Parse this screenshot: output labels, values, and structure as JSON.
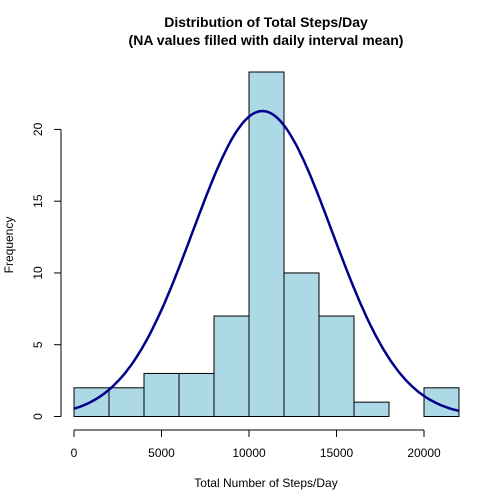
{
  "chart_data": {
    "type": "bar",
    "title": "Distribution of Total Steps/Day",
    "subtitle": "(NA values filled with daily interval mean)",
    "xlabel": "Total Number of Steps/Day",
    "ylabel": "Frequency",
    "bin_edges": [
      0,
      2000,
      4000,
      6000,
      8000,
      10000,
      12000,
      14000,
      16000,
      18000,
      20000,
      22000
    ],
    "values": [
      2,
      2,
      3,
      3,
      7,
      24,
      10,
      7,
      1,
      0,
      2
    ],
    "xlim": [
      0,
      22000
    ],
    "ylim": [
      0,
      24
    ],
    "xticks": [
      0,
      5000,
      10000,
      15000,
      20000
    ],
    "xtick_labels": [
      "0",
      "5000",
      "10000",
      "15000",
      "20000"
    ],
    "yticks": [
      0,
      5,
      10,
      15,
      20
    ],
    "ytick_labels": [
      "0",
      "5",
      "10",
      "15",
      "20"
    ],
    "bar_color": "#add8e6",
    "density_curve": {
      "color": "#00008b",
      "mean": 10766,
      "sd": 3974,
      "scale": 212000
    },
    "grid": false,
    "legend": "none"
  }
}
